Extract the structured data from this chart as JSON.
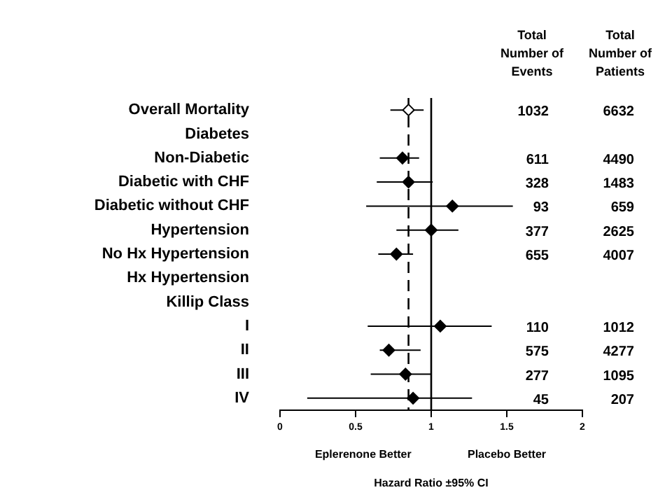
{
  "chart_data": {
    "type": "scatter",
    "orientation": "horizontal",
    "xlabel": "Hazard Ratio ±95% CI",
    "categories": [
      "Overall Mortality",
      "Diabetes",
      "Non-Diabetic",
      "Diabetic with CHF",
      "Diabetic without CHF",
      "Hypertension",
      "No Hx Hypertension",
      "Hx Hypertension",
      "Killip Class",
      "I",
      "II",
      "III",
      "IV"
    ],
    "values": [
      0.85,
      null,
      0.81,
      0.85,
      1.14,
      1.0,
      0.77,
      null,
      null,
      1.06,
      0.72,
      0.83,
      0.88
    ],
    "errors": [
      [
        0.73,
        0.95
      ],
      null,
      [
        0.66,
        0.92
      ],
      [
        0.64,
        1.01
      ],
      [
        0.57,
        1.54
      ],
      [
        0.77,
        1.18
      ],
      [
        0.65,
        0.88
      ],
      null,
      null,
      [
        0.58,
        1.4
      ],
      [
        0.66,
        0.93
      ],
      [
        0.6,
        1.0
      ],
      [
        0.18,
        1.27
      ]
    ],
    "colors": [
      "#ffffff",
      null,
      "#000000",
      "#000000",
      "#000000",
      "#000000",
      "#000000",
      null,
      null,
      "#000000",
      "#000000",
      "#000000",
      "#000000"
    ],
    "marker": "diamond",
    "xlim": [
      0,
      2
    ],
    "xticks": [
      0,
      0.5,
      1,
      1.5,
      2
    ],
    "ref_lines": [
      {
        "axis": "x",
        "value": 1,
        "color": "#000000",
        "line_style": "solid"
      },
      {
        "axis": "x",
        "value": 0.85,
        "color": "#000000",
        "line_style": "dashed"
      }
    ],
    "grid": false,
    "legend": false,
    "annotations": [
      "Total Number of Events",
      "Total Number of Patients",
      "Eplerenone Better",
      "Placebo Better",
      "1032",
      "6632",
      "611",
      "4490",
      "328",
      "1483",
      "93",
      "659",
      "377",
      "2625",
      "655",
      "4007",
      "110",
      "1012",
      "575",
      "4277",
      "277",
      "1095",
      "45",
      "207"
    ]
  }
}
